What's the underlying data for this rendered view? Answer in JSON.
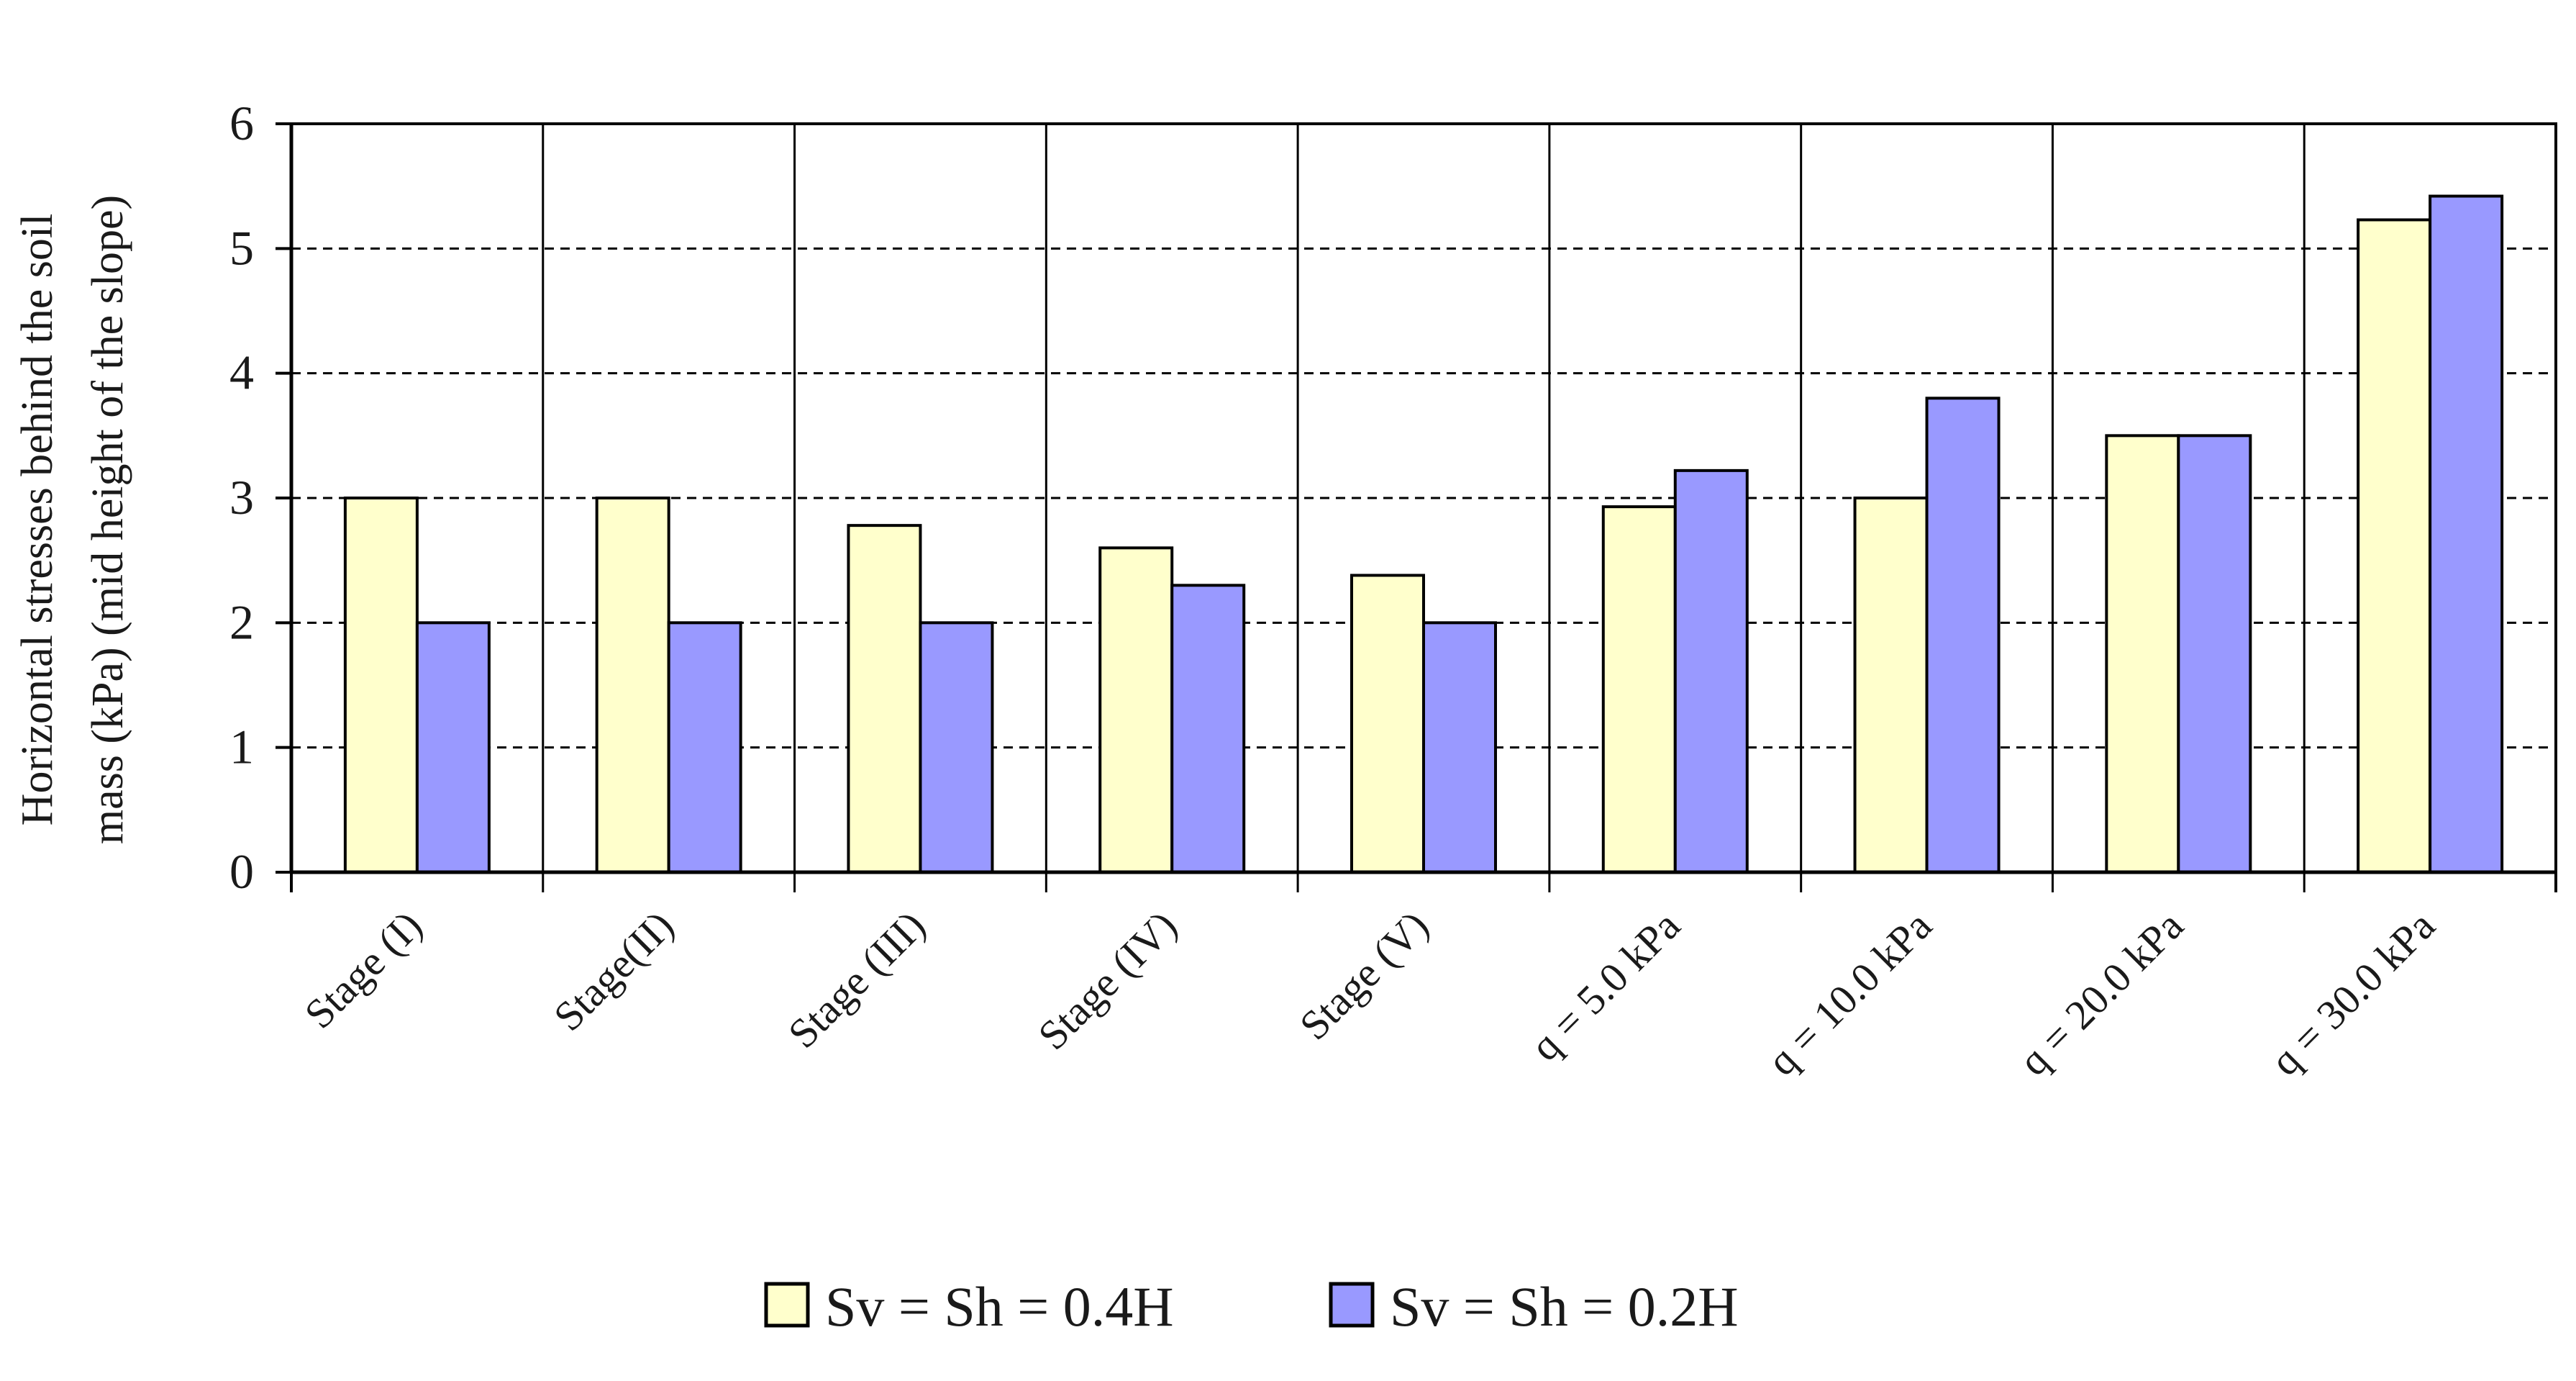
{
  "chart_data": {
    "type": "bar",
    "title": "",
    "ylabel_lines": [
      "Horizontal  stresses behind the soil",
      "mass (kPa) (mid height of the slope)"
    ],
    "xlabel": "",
    "categories": [
      "Stage (I)",
      "Stage(II)",
      "Stage (III)",
      "Stage (IV)",
      "Stage (V)",
      "q = 5.0 kPa",
      "q = 10.0 kPa",
      "q = 20.0 kPa",
      "q = 30.0 kPa"
    ],
    "series": [
      {
        "name": "Sv = Sh = 0.4H",
        "color": "#ffffcc",
        "values": [
          3.0,
          3.0,
          2.78,
          2.6,
          2.38,
          2.93,
          3.0,
          3.5,
          5.23
        ]
      },
      {
        "name": "Sv = Sh = 0.2H",
        "color": "#9999ff",
        "values": [
          2.0,
          2.0,
          2.0,
          2.3,
          2.0,
          3.22,
          3.8,
          3.5,
          5.42
        ]
      }
    ],
    "ylim": [
      0,
      6
    ],
    "yticks": [
      "0",
      "1",
      "2",
      "3",
      "4",
      "5",
      "6"
    ],
    "grid": "horizontal-dashed",
    "legend_position": "bottom"
  }
}
